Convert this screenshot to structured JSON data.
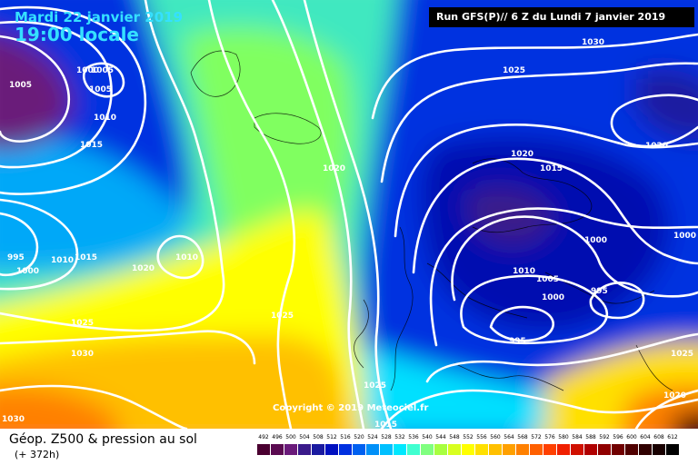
{
  "header": {
    "date": "Mardi 22 janvier 2019",
    "time": "19:00 locale",
    "run": "Run GFS(P)// 6 Z du Lundi 7 janvier 2019"
  },
  "footer": {
    "title": "Géop. Z500 & pression au sol",
    "subtitle": "(+ 372h)",
    "copyright": "Copyright © 2019 Meteociel.fr"
  },
  "legend": {
    "values": [
      "492",
      "496",
      "500",
      "504",
      "508",
      "512",
      "516",
      "520",
      "524",
      "528",
      "532",
      "536",
      "540",
      "544",
      "548",
      "552",
      "556",
      "560",
      "564",
      "568",
      "572",
      "576",
      "580",
      "584",
      "588",
      "592",
      "596",
      "600",
      "604",
      "608",
      "612"
    ],
    "colors": [
      "#4a0030",
      "#5a0a50",
      "#6a1a7a",
      "#3a1a8a",
      "#1a1aa0",
      "#0010c0",
      "#0030e0",
      "#0060f0",
      "#0090f8",
      "#00c0ff",
      "#00e8ff",
      "#40ffd0",
      "#80ff80",
      "#a8ff40",
      "#d8ff20",
      "#ffff00",
      "#ffe000",
      "#ffc000",
      "#ffa000",
      "#ff8000",
      "#ff6000",
      "#ff4000",
      "#f02000",
      "#d01000",
      "#b00000",
      "#900000",
      "#700000",
      "#500000",
      "#300000",
      "#180000",
      "#000000"
    ]
  },
  "isobars": [
    "1005",
    "1005",
    "1005",
    "1000",
    "1010",
    "1015",
    "995",
    "1000",
    "1015",
    "1010",
    "1020",
    "1010",
    "1025",
    "1030",
    "1030",
    "1020",
    "1025",
    "1025",
    "1030",
    "1025",
    "1020",
    "1015",
    "1010",
    "1005",
    "1000",
    "995",
    "995",
    "1000",
    "1000",
    "1020",
    "1025",
    "1020",
    "1015"
  ]
}
